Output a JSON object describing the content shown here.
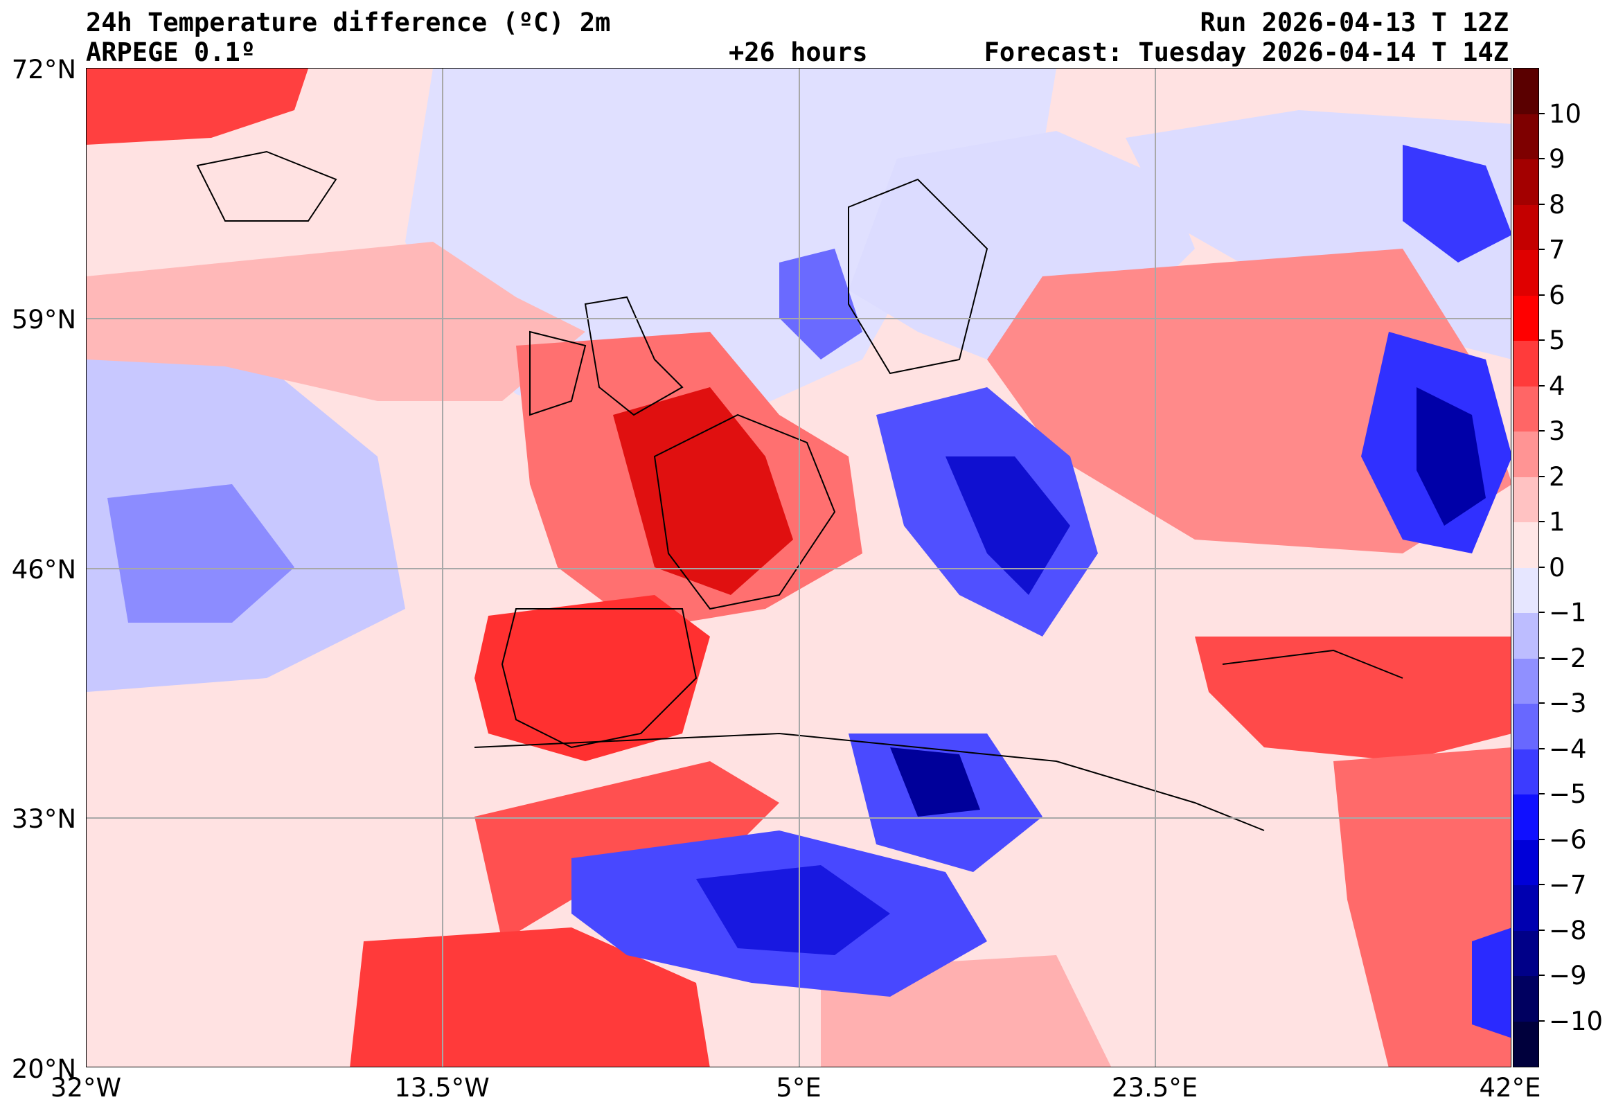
{
  "header": {
    "title": "24h Temperature difference (ºC) 2m",
    "model": "ARPEGE 0.1º",
    "lead": "+26 hours",
    "run": "Run 2026-04-13 T 12Z",
    "forecast": "Forecast: Tuesday 2026-04-14 T 14Z"
  },
  "axes": {
    "lat_labels": [
      "72°N",
      "59°N",
      "46°N",
      "33°N",
      "20°N"
    ],
    "lon_labels": [
      "32°W",
      "13.5°W",
      "5°E",
      "23.5°E",
      "42°E"
    ],
    "lat_range": [
      20,
      72
    ],
    "lon_range": [
      -32,
      42
    ],
    "grid": true
  },
  "colorbar": {
    "labels": [
      "10",
      "9",
      "8",
      "7",
      "6",
      "5",
      "4",
      "3",
      "2",
      "1",
      "0",
      "−1",
      "−2",
      "−3",
      "−4",
      "−5",
      "−6",
      "−7",
      "−8",
      "−9",
      "−10"
    ],
    "colors": [
      "#5a0000",
      "#7e0000",
      "#a30000",
      "#c40000",
      "#e00000",
      "#ff0000",
      "#ff3b3b",
      "#ff6666",
      "#ff9494",
      "#ffc2c2",
      "#ffe6e6",
      "#e6e6ff",
      "#bdbdff",
      "#9090ff",
      "#6868ff",
      "#3c3cff",
      "#1010ff",
      "#0000d8",
      "#0000b0",
      "#000088",
      "#000060",
      "#00003c"
    ]
  }
}
